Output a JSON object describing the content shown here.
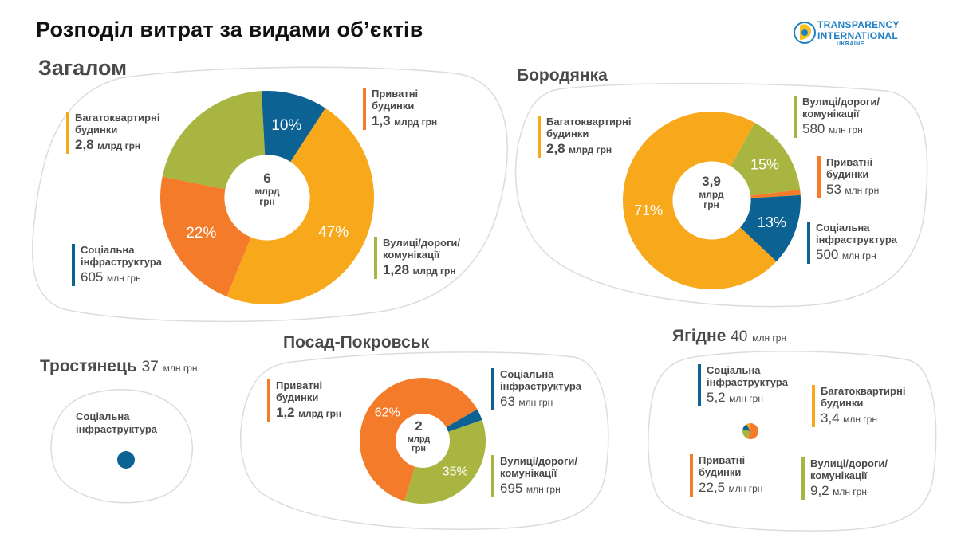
{
  "title": "Розподіл витрат за видами обʼєктів",
  "logo": {
    "line1": "TRANSPARENCY",
    "line2": "INTERNATIONAL",
    "line3": "UKRAINE"
  },
  "colors": {
    "multi_apartment": "#f7a81b",
    "private_houses": "#f47b2a",
    "streets_roads": "#a9b541",
    "social_infra": "#0d6294"
  },
  "sections": {
    "total": {
      "title": "Загалом",
      "center": {
        "line1": "6",
        "line2": "млрд",
        "line3": "грн"
      },
      "labels": {
        "multi": {
          "name1": "Багатоквартирні",
          "name2": "будинки",
          "num": "2,8",
          "unit": "млрд грн"
        },
        "private": {
          "name1": "Приватні",
          "name2": "будинки",
          "num": "1,3",
          "unit": "млрд грн"
        },
        "streets": {
          "name1": "Вулиці/дороги/",
          "name2": "комунікації",
          "num": "1,28",
          "unit": "млрд грн"
        },
        "social": {
          "name1": "Соціальна",
          "name2": "інфраструктура",
          "num": "605",
          "unit": "млн грн"
        }
      }
    },
    "borodyanka": {
      "title": "Бородянка",
      "center": {
        "line1": "3,9",
        "line2": "млрд",
        "line3": "грн"
      },
      "labels": {
        "multi": {
          "name1": "Багатоквартирні",
          "name2": "будинки",
          "num": "2,8",
          "unit": "млрд грн"
        },
        "streets": {
          "name1": "Вулиці/дороги/",
          "name2": "комунікації",
          "num": "580",
          "unit": "млн грн"
        },
        "private": {
          "name1": "Приватні",
          "name2": "будинки",
          "num": "53",
          "unit": "млн грн"
        },
        "social": {
          "name1": "Соціальна",
          "name2": "інфраструктура",
          "num": "500",
          "unit": "млн грн"
        }
      }
    },
    "trostyanets": {
      "title": "Тростянець",
      "total_num": "37",
      "total_unit": "млн грн",
      "labels": {
        "social": {
          "name1": "Соціальна",
          "name2": "інфраструктура"
        }
      }
    },
    "posad": {
      "title": "Посад-Покровськ",
      "center": {
        "line1": "2",
        "line2": "млрд",
        "line3": "грн"
      },
      "labels": {
        "private": {
          "name1": "Приватні",
          "name2": "будинки",
          "num": "1,2",
          "unit": "млрд грн"
        },
        "social": {
          "name1": "Соціальна",
          "name2": "інфраструктура",
          "num": "63",
          "unit": "млн грн"
        },
        "streets": {
          "name1": "Вулиці/дороги/",
          "name2": "комунікації",
          "num": "695",
          "unit": "млн грн"
        }
      }
    },
    "yagidne": {
      "title": "Ягідне",
      "total_num": "40",
      "total_unit": "млн грн",
      "labels": {
        "social": {
          "name1": "Соціальна",
          "name2": "інфраструктура",
          "num": "5,2",
          "unit": "млн грн"
        },
        "multi": {
          "name1": "Багатоквартирні",
          "name2": "будинки",
          "num": "3,4",
          "unit": "млн грн"
        },
        "private": {
          "name1": "Приватні",
          "name2": "будинки",
          "num": "22,5",
          "unit": "млн грн"
        },
        "streets": {
          "name1": "Вулиці/дороги/",
          "name2": "комунікації",
          "num": "9,2",
          "unit": "млн грн"
        }
      }
    }
  },
  "chart_data": [
    {
      "type": "pie",
      "title": "Загалом",
      "series": [
        {
          "name": "Багатоквартирні будинки",
          "value": 47,
          "label": "47%",
          "color": "#f7a81b"
        },
        {
          "name": "Приватні будинки",
          "value": 22,
          "label": "22%",
          "color": "#f47b2a"
        },
        {
          "name": "Вулиці/дороги/комунікації",
          "value": 21,
          "label": "",
          "color": "#a9b541"
        },
        {
          "name": "Соціальна інфраструктура",
          "value": 10,
          "label": "10%",
          "color": "#0d6294"
        }
      ]
    },
    {
      "type": "pie",
      "title": "Бородянка",
      "series": [
        {
          "name": "Вулиці/дороги/комунікації",
          "value": 15,
          "label": "15%",
          "color": "#a9b541"
        },
        {
          "name": "Приватні будинки",
          "value": 1,
          "label": "",
          "color": "#f47b2a"
        },
        {
          "name": "Соціальна інфраструктура",
          "value": 13,
          "label": "13%",
          "color": "#0d6294"
        },
        {
          "name": "Багатоквартирні будинки",
          "value": 71,
          "label": "71%",
          "color": "#f7a81b"
        }
      ]
    },
    {
      "type": "pie",
      "title": "Посад-Покровськ",
      "series": [
        {
          "name": "Соціальна інфраструктура",
          "value": 3,
          "label": "",
          "color": "#0d6294"
        },
        {
          "name": "Вулиці/дороги/комунікації",
          "value": 35,
          "label": "35%",
          "color": "#a9b541"
        },
        {
          "name": "Приватні будинки",
          "value": 62,
          "label": "62%",
          "color": "#f47b2a"
        }
      ]
    },
    {
      "type": "pie",
      "title": "Тростянець",
      "series": [
        {
          "name": "Соціальна інфраструктура",
          "value": 37,
          "label": "",
          "color": "#0d6294"
        }
      ]
    },
    {
      "type": "pie",
      "title": "Ягідне",
      "series": [
        {
          "name": "Приватні будинки",
          "value": 22.5,
          "label": "",
          "color": "#f47b2a"
        },
        {
          "name": "Вулиці/дороги/комунікації",
          "value": 9.2,
          "label": "",
          "color": "#a9b541"
        },
        {
          "name": "Соціальна інфраструктура",
          "value": 5.2,
          "label": "",
          "color": "#0d6294"
        },
        {
          "name": "Багатоквартирні будинки",
          "value": 3.4,
          "label": "",
          "color": "#f7a81b"
        }
      ]
    }
  ]
}
